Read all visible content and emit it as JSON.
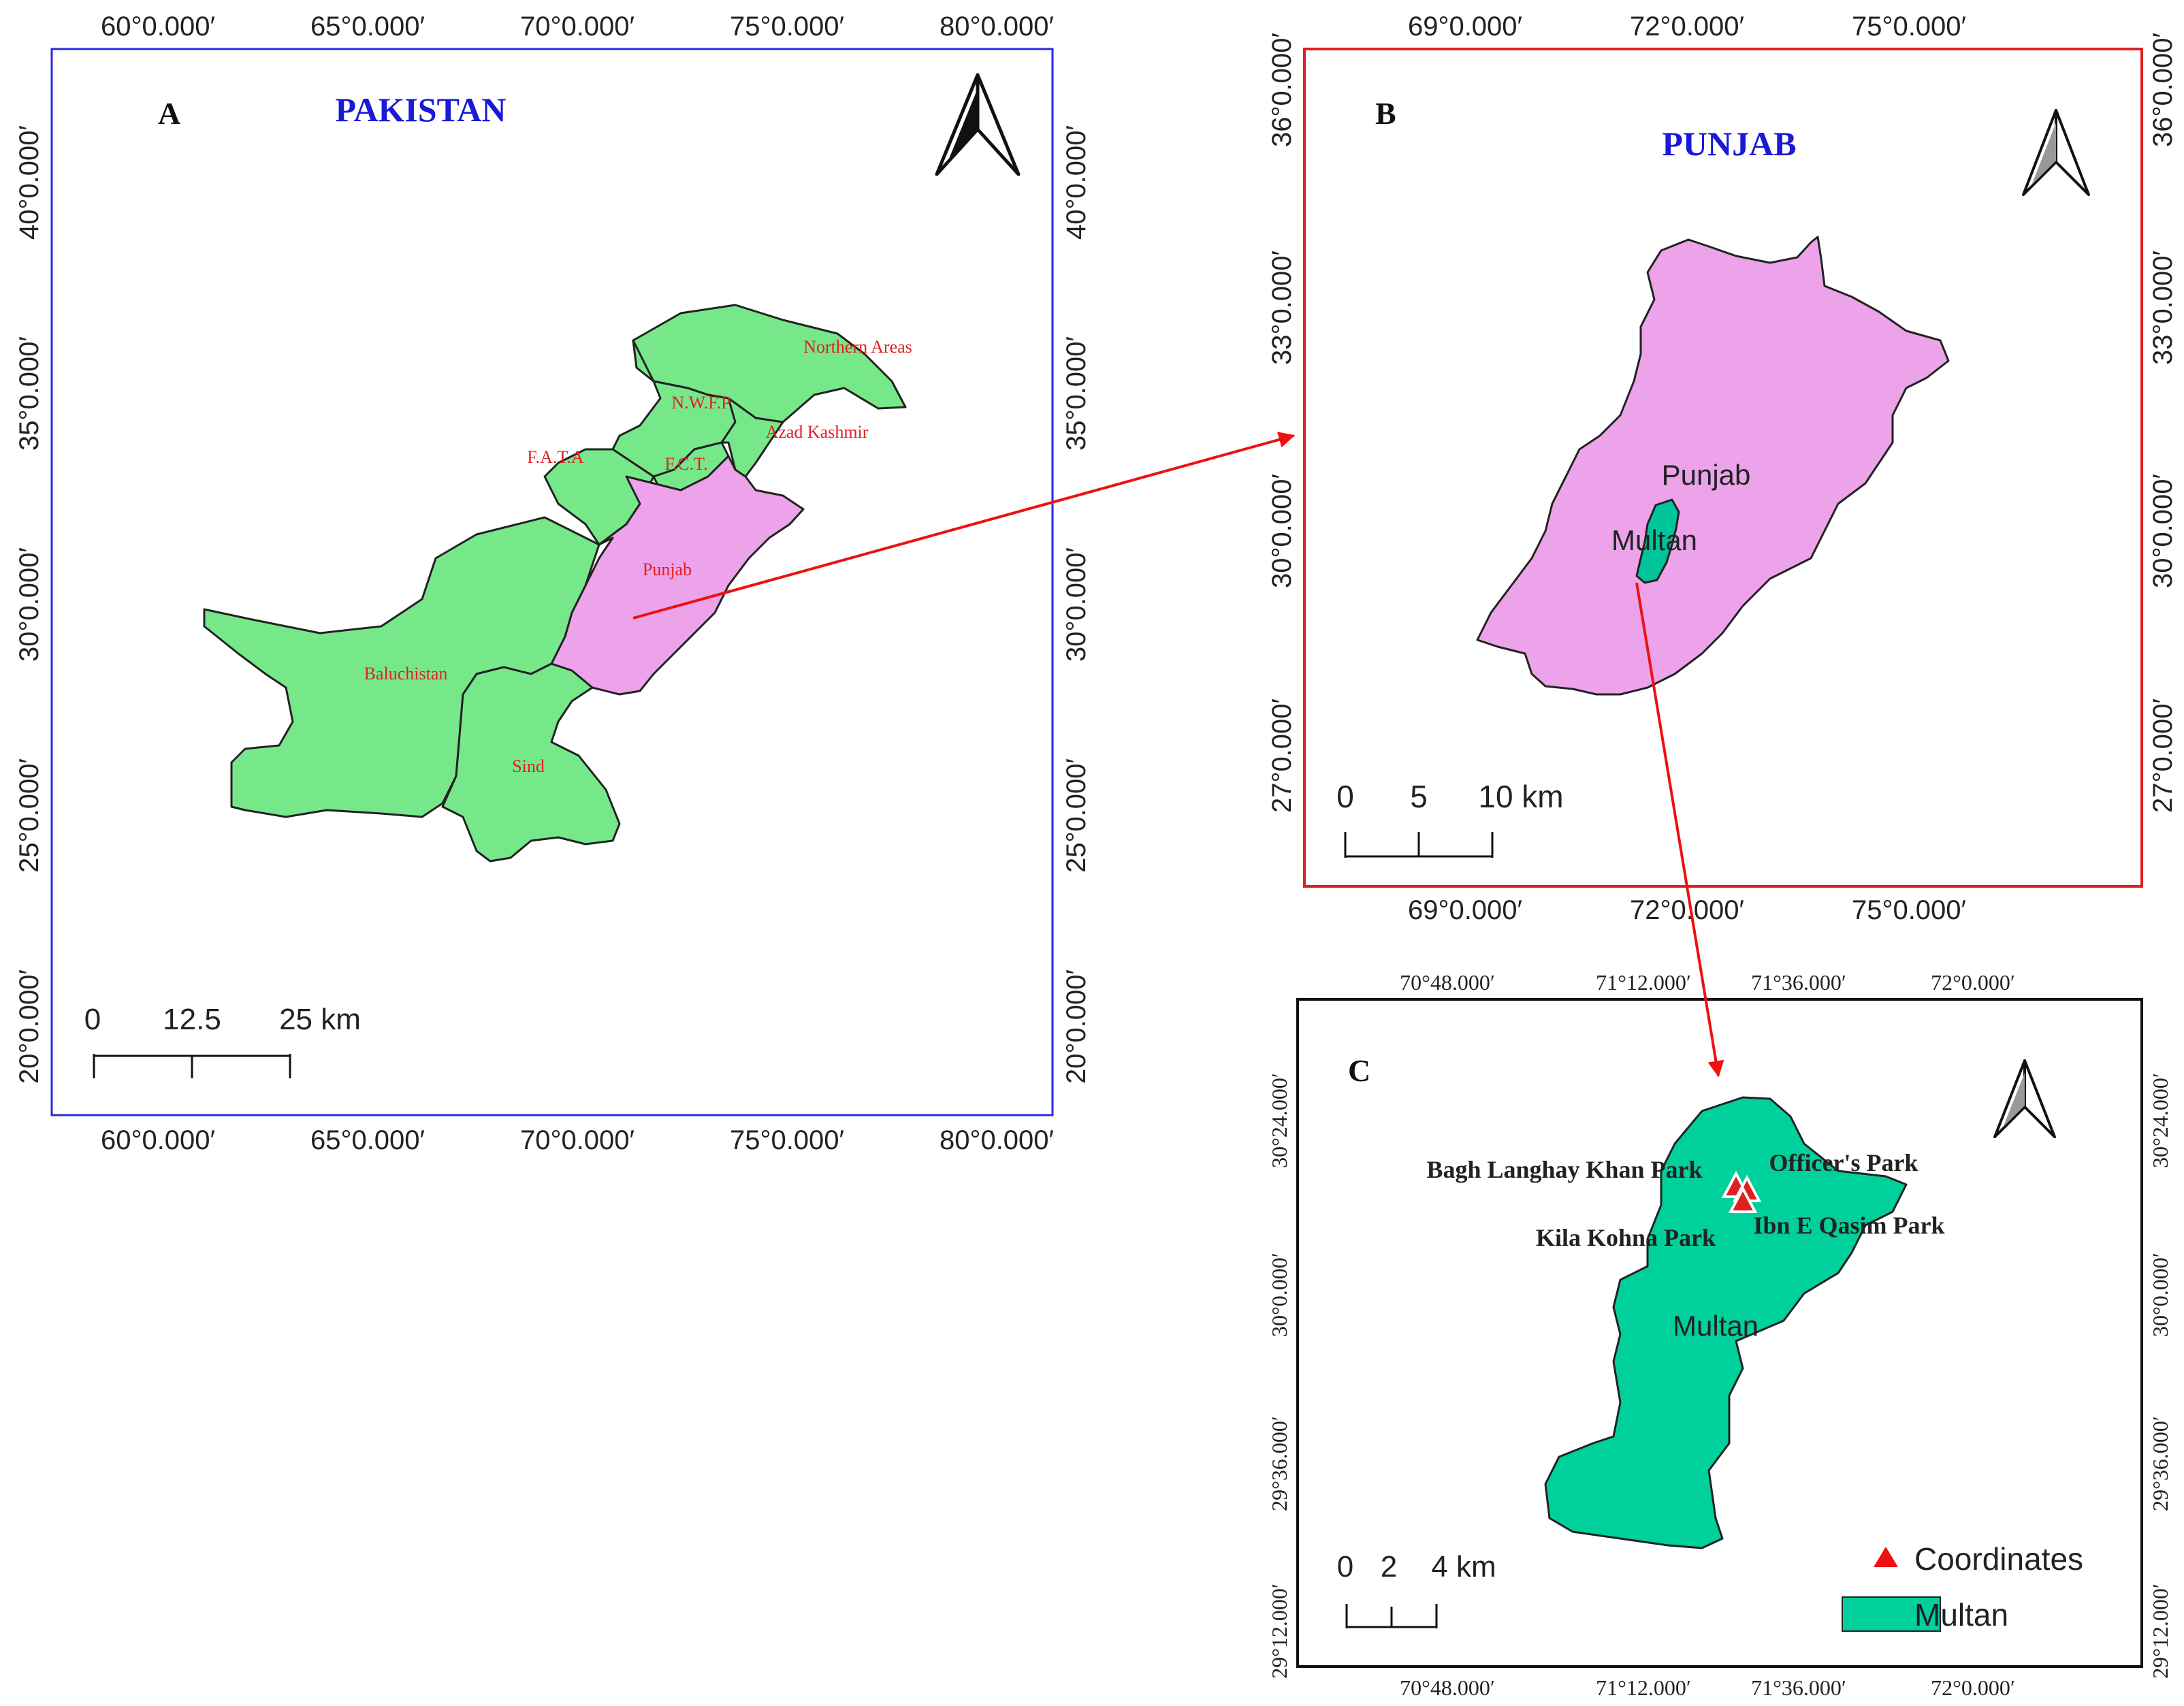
{
  "colors": {
    "province_green": "#77e88a",
    "punjab_pink": "#eca3ea",
    "multan_teal": "#00d09c",
    "frame_blue": "#2a2ae0",
    "frame_red": "#e02020",
    "frame_black": "#111111",
    "label_red": "#e02020",
    "title_blue": "#1a1ad6",
    "arrow_red": "#ee1111"
  },
  "icons": [
    "north-arrow-icon",
    "coordinate-triangle-icon"
  ],
  "panel_a": {
    "letter": "A",
    "title": "PAKISTAN",
    "top_ticks": [
      "60°0.000′",
      "65°0.000′",
      "70°0.000′",
      "75°0.000′",
      "80°0.000′"
    ],
    "bottom_ticks": [
      "60°0.000′",
      "65°0.000′",
      "70°0.000′",
      "75°0.000′",
      "80°0.000′"
    ],
    "left_ticks": [
      "40°0.000′",
      "35°0.000′",
      "30°0.000′",
      "25°0.000′",
      "20°0.000′"
    ],
    "right_ticks": [
      "40°0.000′",
      "35°0.000′",
      "30°0.000′",
      "25°0.000′",
      "20°0.000′"
    ],
    "regions": [
      "Northern Areas",
      "N.W.F.P",
      "Azad Kashmir",
      "F.A.T.A",
      "F.C.T.",
      "Punjab",
      "Baluchistan",
      "Sind"
    ],
    "scale": {
      "zero": "0",
      "mid": "12.5",
      "end": "25 km"
    }
  },
  "panel_b": {
    "letter": "B",
    "title": "PUNJAB",
    "top_ticks": [
      "69°0.000′",
      "72°0.000′",
      "75°0.000′"
    ],
    "bottom_ticks": [
      "69°0.000′",
      "72°0.000′",
      "75°0.000′"
    ],
    "left_ticks": [
      "36°0.000′",
      "33°0.000′",
      "30°0.000′",
      "27°0.000′"
    ],
    "right_ticks": [
      "36°0.000′",
      "33°0.000′",
      "30°0.000′",
      "27°0.000′"
    ],
    "region_label": "Punjab",
    "district_label": "Multan",
    "scale": {
      "zero": "0",
      "mid": "5",
      "end": "10 km"
    }
  },
  "panel_c": {
    "letter": "C",
    "top_ticks": [
      "70°48.000′",
      "71°12.000′",
      "71°36.000′",
      "72°0.000′"
    ],
    "bottom_ticks": [
      "70°48.000′",
      "71°12.000′",
      "71°36.000′",
      "72°0.000′"
    ],
    "left_ticks": [
      "30°24.000′",
      "30°0.000′",
      "29°36.000′",
      "29°12.000′"
    ],
    "right_ticks": [
      "30°24.000′",
      "30°0.000′",
      "29°36.000′",
      "29°12.000′"
    ],
    "district_label": "Multan",
    "parks": [
      "Bagh Langhay Khan Park",
      "Officer's Park",
      "Kila Kohna Park",
      "Ibn E Qasim Park"
    ],
    "scale": {
      "zero": "0",
      "mid": "2",
      "end": "4 km"
    },
    "legend": {
      "coordinates": "Coordinates",
      "multan": "Multan"
    }
  }
}
